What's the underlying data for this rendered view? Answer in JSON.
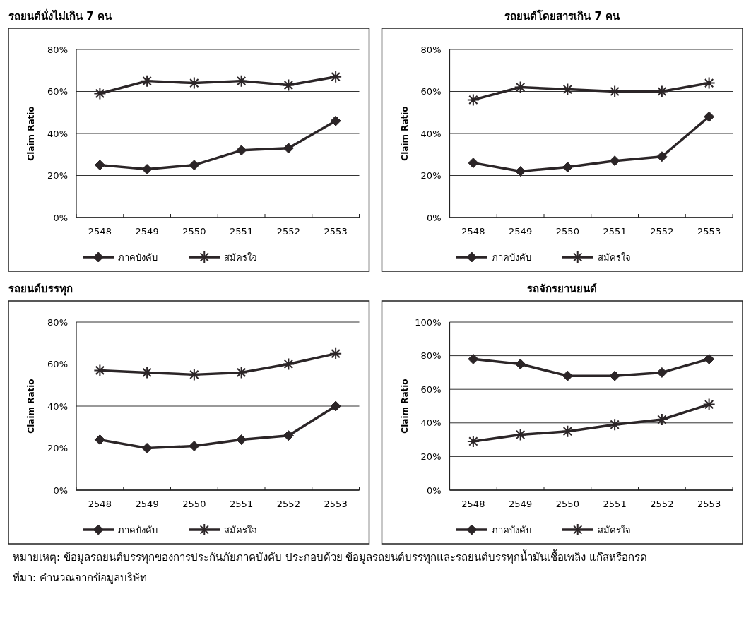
{
  "chart_data": [
    {
      "type": "line",
      "title": "รถยนต์นั่งไม่เกิน 7 คน",
      "ylabel": "Claim Ratio",
      "categories": [
        "2548",
        "2549",
        "2550",
        "2551",
        "2552",
        "2553"
      ],
      "ylim": [
        0,
        80
      ],
      "yticks": [
        {
          "value": 0,
          "label": "0%"
        },
        {
          "value": 20,
          "label": "20%"
        },
        {
          "value": 40,
          "label": "40%"
        },
        {
          "value": 60,
          "label": "60%"
        },
        {
          "value": 80,
          "label": "80%"
        }
      ],
      "grid": "y",
      "legend": "bottom",
      "series": [
        {
          "name": "ภาคบังคับ",
          "color": "#2b2527",
          "marker": "diamond",
          "values": [
            25,
            23,
            25,
            32,
            33,
            46
          ]
        },
        {
          "name": "สมัครใจ",
          "color": "#2b2527",
          "marker": "cross",
          "values": [
            59,
            65,
            64,
            65,
            63,
            67
          ]
        }
      ]
    },
    {
      "type": "line",
      "title": "รถยนต์โดยสารเกิน 7 คน",
      "ylabel": "Claim Ratio",
      "categories": [
        "2548",
        "2549",
        "2550",
        "2551",
        "2552",
        "2553"
      ],
      "ylim": [
        0,
        80
      ],
      "yticks": [
        {
          "value": 0,
          "label": "0%"
        },
        {
          "value": 20,
          "label": "20%"
        },
        {
          "value": 40,
          "label": "40%"
        },
        {
          "value": 60,
          "label": "60%"
        },
        {
          "value": 80,
          "label": "80%"
        }
      ],
      "grid": "y",
      "legend": "bottom",
      "series": [
        {
          "name": "ภาคบังคับ",
          "color": "#2b2527",
          "marker": "diamond",
          "values": [
            26,
            22,
            24,
            27,
            29,
            48
          ]
        },
        {
          "name": "สมัครใจ",
          "color": "#2b2527",
          "marker": "cross",
          "values": [
            56,
            62,
            61,
            60,
            60,
            64
          ]
        }
      ]
    },
    {
      "type": "line",
      "title": "รถยนต์บรรทุก",
      "ylabel": "Claim Ratio",
      "categories": [
        "2548",
        "2549",
        "2550",
        "2551",
        "2552",
        "2553"
      ],
      "ylim": [
        0,
        80
      ],
      "yticks": [
        {
          "value": 0,
          "label": "0%"
        },
        {
          "value": 20,
          "label": "20%"
        },
        {
          "value": 40,
          "label": "40%"
        },
        {
          "value": 60,
          "label": "60%"
        },
        {
          "value": 80,
          "label": "80%"
        }
      ],
      "grid": "y",
      "legend": "bottom",
      "series": [
        {
          "name": "ภาคบังคับ",
          "color": "#2b2527",
          "marker": "diamond",
          "values": [
            24,
            20,
            21,
            24,
            26,
            40
          ]
        },
        {
          "name": "สมัครใจ",
          "color": "#2b2527",
          "marker": "cross",
          "values": [
            57,
            56,
            55,
            56,
            60,
            65
          ]
        }
      ]
    },
    {
      "type": "line",
      "title": "รถจักรยานยนต์",
      "ylabel": "Claim Ratio",
      "categories": [
        "2548",
        "2549",
        "2550",
        "2551",
        "2552",
        "2553"
      ],
      "ylim": [
        0,
        100
      ],
      "yticks": [
        {
          "value": 0,
          "label": "0%"
        },
        {
          "value": 20,
          "label": "20%"
        },
        {
          "value": 40,
          "label": "40%"
        },
        {
          "value": 60,
          "label": "60%"
        },
        {
          "value": 80,
          "label": "80%"
        },
        {
          "value": 100,
          "label": "100%"
        }
      ],
      "grid": "y",
      "legend": "bottom",
      "series": [
        {
          "name": "ภาคบังคับ",
          "color": "#2b2527",
          "marker": "diamond",
          "values": [
            78,
            75,
            68,
            68,
            70,
            78
          ]
        },
        {
          "name": "สมัครใจ",
          "color": "#2b2527",
          "marker": "cross",
          "values": [
            29,
            33,
            35,
            39,
            42,
            51
          ]
        }
      ],
      "annotations": [
        "หมายเหตุ: ข้อมูลรถยนต์บรรทุกของการประกันภัยภาคบังคับ ประกอบด้วย ข้อมูลรถยนต์บรรทุกและรถยนต์บรรทุกน้ำมันเชื้อเพลิง แก๊สหรือกรด",
        "ที่มา: คำนวณจากข้อมูลบริษัท"
      ]
    }
  ]
}
